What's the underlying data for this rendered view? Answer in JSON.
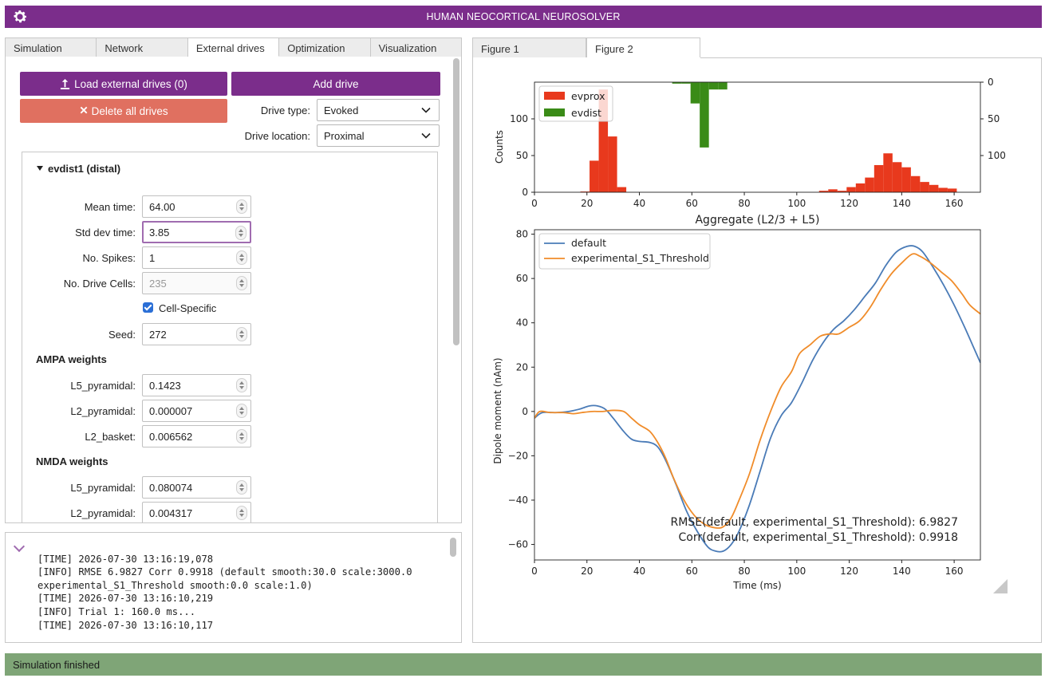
{
  "app": {
    "title": "HUMAN NEOCORTICAL NEUROSOLVER"
  },
  "left_tabs": [
    "Simulation",
    "Network",
    "External drives",
    "Optimization",
    "Visualization"
  ],
  "drives": {
    "load_label": "Load external drives (0)",
    "add_label": "Add drive",
    "delete_label": "Delete all drives",
    "drive_type_label": "Drive type:",
    "drive_type_value": "Evoked",
    "drive_location_label": "Drive location:",
    "drive_location_value": "Proximal",
    "drive": {
      "header": "evdist1 (distal)",
      "mean_time_label": "Mean time:",
      "mean_time": "64.00",
      "std_dev_label": "Std dev time:",
      "std_dev": "3.85",
      "spikes_label": "No. Spikes:",
      "spikes": "1",
      "cells_label": "No. Drive Cells:",
      "cells": "235",
      "cell_specific_label": "Cell-Specific",
      "seed_label": "Seed:",
      "seed": "272",
      "ampa_title": "AMPA weights",
      "ampa": [
        {
          "label": "L5_pyramidal:",
          "value": "0.1423"
        },
        {
          "label": "L2_pyramidal:",
          "value": "0.000007"
        },
        {
          "label": "L2_basket:",
          "value": "0.006562"
        }
      ],
      "nmda_title": "NMDA weights",
      "nmda": [
        {
          "label": "L5_pyramidal:",
          "value": "0.080074"
        },
        {
          "label": "L2_pyramidal:",
          "value": "0.004317"
        }
      ]
    }
  },
  "log": {
    "lines": [
      "[TIME] 2026-07-30 13:16:19,078",
      "[INFO] RMSE 6.9827 Corr 0.9918 (default smooth:30.0 scale:3000.0",
      "experimental_S1_Threshold smooth:0.0 scale:1.0)",
      "",
      "[TIME] 2026-07-30 13:16:10,219",
      "[INFO] Trial 1: 160.0 ms...",
      "",
      "[TIME] 2026-07-30 13:16:10,117"
    ]
  },
  "right_tabs": [
    "Figure 1",
    "Figure 2"
  ],
  "status": {
    "text": "Simulation finished"
  },
  "colors": {
    "accent": "#7b2d8b",
    "danger": "#e07060",
    "status": "#7fa577",
    "evprox": "#e8391d",
    "evdist": "#3a8b17",
    "default": "#4a7bb7",
    "experimental": "#f08c2a"
  },
  "chart_data": [
    {
      "type": "bar",
      "xlabel": "Aggregate (L2/3 + L5)",
      "ylabel": "Counts",
      "xlim": [
        0,
        170
      ],
      "ylim": [
        0,
        150
      ],
      "ylim_right": [
        150,
        0
      ],
      "xticks": [
        0,
        20,
        40,
        60,
        80,
        100,
        120,
        140,
        160
      ],
      "yticks": [
        0,
        50,
        100
      ],
      "yticks_right": [
        0,
        50,
        100
      ],
      "bin_width": 3.5,
      "legend": "top-left",
      "series": [
        {
          "name": "evprox",
          "axis": "left",
          "bins": [
            [
              17.5,
              1
            ],
            [
              21,
              43
            ],
            [
              24.5,
              140
            ],
            [
              28,
              76
            ],
            [
              31.5,
              7
            ],
            [
              108.5,
              2
            ],
            [
              112,
              4
            ],
            [
              115.5,
              2
            ],
            [
              119,
              7
            ],
            [
              122.5,
              12
            ],
            [
              126,
              20
            ],
            [
              129.5,
              37
            ],
            [
              133,
              53
            ],
            [
              136.5,
              41
            ],
            [
              140,
              34
            ],
            [
              143.5,
              22
            ],
            [
              147,
              14
            ],
            [
              150.5,
              10
            ],
            [
              154,
              6
            ],
            [
              157.5,
              5
            ]
          ]
        },
        {
          "name": "evdist",
          "axis": "right",
          "bins": [
            [
              52.5,
              2
            ],
            [
              56,
              2
            ],
            [
              59.5,
              29
            ],
            [
              63,
              89
            ],
            [
              66.5,
              10
            ],
            [
              70,
              10
            ]
          ]
        }
      ]
    },
    {
      "type": "line",
      "xlabel": "Time (ms)",
      "ylabel": "Dipole moment (nAm)",
      "xlim": [
        0,
        170
      ],
      "ylim": [
        -67,
        82
      ],
      "xticks": [
        0,
        20,
        40,
        60,
        80,
        100,
        120,
        140,
        160
      ],
      "yticks": [
        -60,
        -40,
        -20,
        0,
        20,
        40,
        60,
        80
      ],
      "legend": "top-left",
      "annotations": [
        "RMSE(default, experimental_S1_Threshold): 6.9827",
        "Corr(default, experimental_S1_Threshold): 0.9918"
      ],
      "series": [
        {
          "name": "default",
          "points": [
            [
              0,
              -3
            ],
            [
              3,
              -0.5
            ],
            [
              8,
              -0.5
            ],
            [
              13,
              0
            ],
            [
              17,
              1
            ],
            [
              21,
              2.5
            ],
            [
              24,
              2.5
            ],
            [
              27,
              1
            ],
            [
              30,
              -3
            ],
            [
              34,
              -9
            ],
            [
              37,
              -12.5
            ],
            [
              40,
              -13.5
            ],
            [
              44,
              -14
            ],
            [
              47,
              -16
            ],
            [
              50,
              -22
            ],
            [
              54,
              -33
            ],
            [
              58,
              -45
            ],
            [
              62,
              -54
            ],
            [
              66,
              -61
            ],
            [
              69,
              -63
            ],
            [
              72,
              -63
            ],
            [
              75,
              -60
            ],
            [
              78,
              -54
            ],
            [
              82,
              -42
            ],
            [
              86,
              -27
            ],
            [
              90,
              -12
            ],
            [
              94,
              -2
            ],
            [
              98,
              4
            ],
            [
              102,
              13
            ],
            [
              106,
              23
            ],
            [
              110,
              31
            ],
            [
              114,
              37
            ],
            [
              118,
              41
            ],
            [
              122,
              46
            ],
            [
              126,
              52
            ],
            [
              130,
              58
            ],
            [
              134,
              66
            ],
            [
              138,
              72
            ],
            [
              142,
              74.5
            ],
            [
              145,
              74.5
            ],
            [
              148,
              72
            ],
            [
              152,
              65
            ],
            [
              156,
              57
            ],
            [
              160,
              48
            ],
            [
              164,
              38
            ],
            [
              167,
              30
            ],
            [
              170,
              22
            ]
          ]
        },
        {
          "name": "experimental_S1_Threshold",
          "points": [
            [
              0,
              -3
            ],
            [
              2,
              0
            ],
            [
              6,
              -0.5
            ],
            [
              11,
              -0.5
            ],
            [
              15,
              -1
            ],
            [
              18,
              -0.5
            ],
            [
              22,
              0
            ],
            [
              26,
              0
            ],
            [
              30,
              0.5
            ],
            [
              34,
              0
            ],
            [
              37,
              -3
            ],
            [
              40,
              -6
            ],
            [
              44,
              -9
            ],
            [
              47,
              -14
            ],
            [
              50,
              -21
            ],
            [
              53,
              -30
            ],
            [
              57,
              -40
            ],
            [
              61,
              -47
            ],
            [
              65,
              -51
            ],
            [
              69,
              -52.5
            ],
            [
              72,
              -52
            ],
            [
              75,
              -48
            ],
            [
              78,
              -40
            ],
            [
              82,
              -28
            ],
            [
              86,
              -13
            ],
            [
              90,
              0
            ],
            [
              94,
              11
            ],
            [
              98,
              18
            ],
            [
              101,
              26
            ],
            [
              105,
              30
            ],
            [
              109,
              34
            ],
            [
              113,
              35
            ],
            [
              116,
              35
            ],
            [
              120,
              38
            ],
            [
              124,
              41
            ],
            [
              128,
              47
            ],
            [
              132,
              55
            ],
            [
              136,
              62
            ],
            [
              140,
              67
            ],
            [
              144,
              71
            ],
            [
              147,
              70
            ],
            [
              151,
              67
            ],
            [
              155,
              63
            ],
            [
              159,
              59
            ],
            [
              163,
              53
            ],
            [
              166,
              48
            ],
            [
              170,
              44
            ]
          ]
        }
      ]
    }
  ]
}
